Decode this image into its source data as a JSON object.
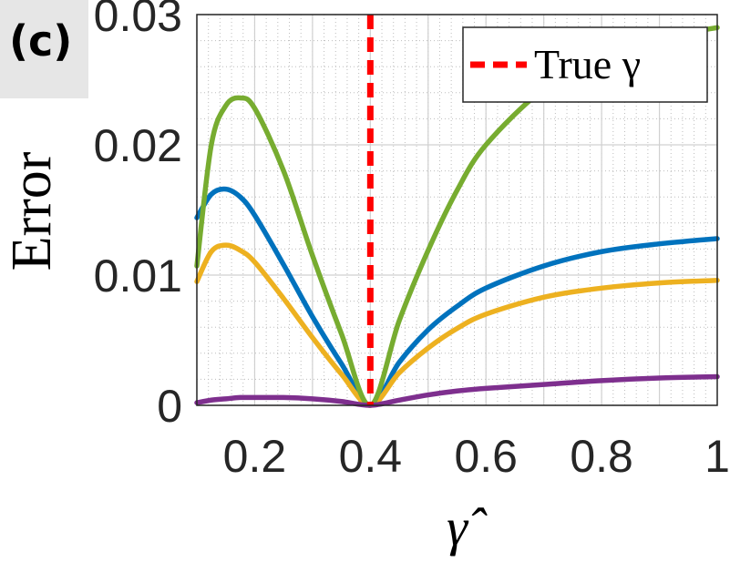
{
  "panel_label": "(c)",
  "chart_data": {
    "type": "line",
    "xlabel": "γ̂",
    "ylabel": "Error",
    "xlim": [
      0.1,
      1.0
    ],
    "ylim": [
      0,
      0.03
    ],
    "x_ticks": [
      0.2,
      0.4,
      0.6,
      0.8,
      1.0
    ],
    "x_tick_labels": [
      "0.2",
      "0.4",
      "0.6",
      "0.8",
      "1"
    ],
    "y_ticks": [
      0,
      0.01,
      0.02,
      0.03
    ],
    "y_tick_labels": [
      "0",
      "0.01",
      "0.02",
      "0.03"
    ],
    "grid": true,
    "minor_grid": true,
    "legend": {
      "position": "top-right",
      "label": "True γ"
    },
    "true_gamma": 0.4,
    "x": [
      0.1,
      0.125,
      0.15,
      0.175,
      0.2,
      0.25,
      0.3,
      0.35,
      0.4,
      0.45,
      0.5,
      0.55,
      0.6,
      0.7,
      0.8,
      0.9,
      1.0
    ],
    "series": [
      {
        "color": "#0072BD",
        "values": [
          0.0144,
          0.0162,
          0.0166,
          0.016,
          0.0146,
          0.0108,
          0.0068,
          0.0032,
          0.0,
          0.0033,
          0.0058,
          0.0076,
          0.009,
          0.0107,
          0.0118,
          0.0124,
          0.0128
        ]
      },
      {
        "color": "#EDB120",
        "values": [
          0.0095,
          0.0118,
          0.0123,
          0.0119,
          0.011,
          0.0082,
          0.0052,
          0.0024,
          0.0,
          0.0025,
          0.0044,
          0.0059,
          0.007,
          0.0083,
          0.009,
          0.0094,
          0.0096
        ]
      },
      {
        "color": "#77AC30",
        "values": [
          0.0107,
          0.02,
          0.023,
          0.0236,
          0.0228,
          0.018,
          0.0115,
          0.0055,
          0.0,
          0.0065,
          0.0119,
          0.0165,
          0.02,
          0.0243,
          0.0268,
          0.0282,
          0.029
        ]
      },
      {
        "color": "#7E2F8E",
        "values": [
          0.0002,
          0.0004,
          0.0005,
          0.0006,
          0.0006,
          0.0006,
          0.0005,
          0.0003,
          0.0,
          0.0004,
          0.0008,
          0.0011,
          0.0013,
          0.0016,
          0.0019,
          0.0021,
          0.0022
        ]
      }
    ]
  }
}
